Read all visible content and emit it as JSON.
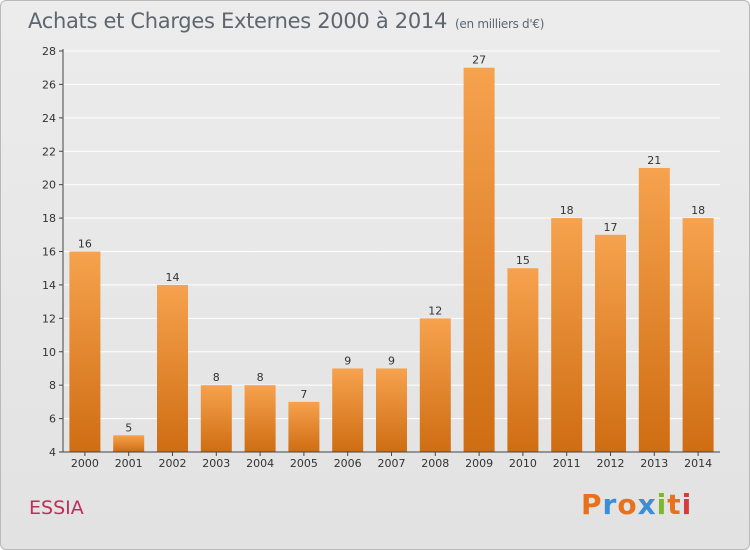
{
  "header": {
    "title": "Achats et Charges Externes 2000 à 2014",
    "subtitle": "(en milliers d'€)"
  },
  "footer": {
    "commune": "ESSIA",
    "logo_text": "Proxiti",
    "logo_colors": [
      "#e8711c",
      "#3a8fd6",
      "#e8711c",
      "#3a8fd6",
      "#7cb82f",
      "#e8711c",
      "#d63b3b"
    ]
  },
  "colors": {
    "bar_top": "#f6a24e",
    "bar_bottom": "#cf6d12",
    "axis": "#444444",
    "grid": "#ffffff",
    "label": "#333333"
  },
  "chart_data": {
    "type": "bar",
    "title": "Achats et Charges Externes 2000 à 2014",
    "subtitle": "(en milliers d'€)",
    "categories": [
      "2000",
      "2001",
      "2002",
      "2003",
      "2004",
      "2005",
      "2006",
      "2007",
      "2008",
      "2009",
      "2010",
      "2011",
      "2012",
      "2013",
      "2014"
    ],
    "values": [
      16,
      5,
      14,
      8,
      8,
      7,
      9,
      9,
      12,
      27,
      15,
      18,
      17,
      21,
      18
    ],
    "ylim": [
      4,
      28
    ],
    "yticks": [
      4,
      6,
      8,
      10,
      12,
      14,
      16,
      18,
      20,
      22,
      24,
      26,
      28
    ],
    "grid": true,
    "data_labels": true
  }
}
